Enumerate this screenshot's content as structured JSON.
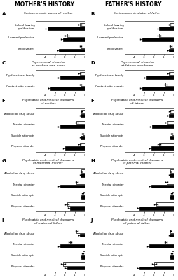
{
  "annotations": [
    "MOTHER'S HISTORY",
    "FATHER'S HISTORY"
  ],
  "chart_data": [
    {
      "type": "bar",
      "orientation": "horizontal",
      "title": "Socioeconomic status of mother",
      "annotations": [
        "A"
      ],
      "categories": [
        "School leaving\nqualification",
        "Learned profession",
        "Employment"
      ],
      "series": [
        {
          "color": "white",
          "values": [
            -0.5,
            -1.8,
            -0.4
          ],
          "errors": [
            0.15,
            0.15,
            0.1
          ]
        },
        {
          "color": "black",
          "values": [
            -3.8,
            -2.2,
            -2.6
          ],
          "errors": [
            0.2,
            0.2,
            0.2
          ]
        }
      ],
      "xlim": [
        -5,
        0
      ],
      "xticks": [
        -4,
        -3,
        -2,
        -1,
        0
      ]
    },
    {
      "type": "bar",
      "orientation": "horizontal",
      "title": "Socioeconomic status of father",
      "annotations": [
        "B"
      ],
      "categories": [
        "School leaving\nqualification",
        "Learned profession",
        "Employment"
      ],
      "series": [
        {
          "color": "white",
          "values": [
            -0.4,
            -1.5,
            -0.3
          ],
          "errors": [
            0.1,
            0.15,
            0.1
          ]
        },
        {
          "color": "black",
          "values": [
            -1.5,
            -3.2,
            -0.5
          ],
          "errors": [
            0.15,
            0.2,
            0.1
          ]
        }
      ],
      "xlim": [
        -5,
        0
      ],
      "xticks": [
        -4,
        -3,
        -2,
        -1,
        0
      ]
    },
    {
      "type": "bar",
      "orientation": "horizontal",
      "title": "Psychosocial situation\nat mothers own home",
      "annotations": [
        "C"
      ],
      "categories": [
        "Dysfunctional family",
        "Contact with parents"
      ],
      "series": [
        {
          "color": "white",
          "values": [
            -0.5,
            -0.4
          ],
          "errors": [
            0.1,
            0.1
          ]
        },
        {
          "color": "black",
          "values": [
            -2.5,
            -3.5
          ],
          "errors": [
            0.2,
            0.2
          ]
        }
      ],
      "xlim": [
        -5,
        0
      ],
      "xticks": [
        -4,
        -3,
        -2,
        -1,
        0
      ]
    },
    {
      "type": "bar",
      "orientation": "horizontal",
      "title": "Psychosocial situation\nat fathers own home",
      "annotations": [
        "D"
      ],
      "categories": [
        "Dysfunctional family",
        "Contact with parents"
      ],
      "series": [
        {
          "color": "white",
          "values": [
            -0.5,
            -0.8
          ],
          "errors": [
            0.1,
            0.1
          ]
        },
        {
          "color": "black",
          "values": [
            -2.8,
            -3.2
          ],
          "errors": [
            0.2,
            0.2
          ]
        }
      ],
      "xlim": [
        -5,
        0
      ],
      "xticks": [
        -4,
        -3,
        -2,
        -1,
        0
      ]
    },
    {
      "type": "bar",
      "orientation": "horizontal",
      "title": "Psychiatric and medical disorders\nof mother",
      "annotations": [
        "E"
      ],
      "categories": [
        "Alcohol or drug abuse",
        "Mental disorder",
        "Suicide attempts",
        "Physical disorder"
      ],
      "series": [
        {
          "color": "white",
          "values": [
            -0.3,
            -0.8,
            -0.2,
            -0.5
          ],
          "errors": [
            0.05,
            0.1,
            0.05,
            0.1
          ]
        },
        {
          "color": "black",
          "values": [
            -0.4,
            -2.5,
            -0.4,
            -2.0
          ],
          "errors": [
            0.1,
            0.2,
            0.1,
            0.2
          ]
        }
      ],
      "xlim": [
        -5,
        0
      ],
      "xticks": [
        -4,
        -3,
        -2,
        -1,
        0
      ]
    },
    {
      "type": "bar",
      "orientation": "horizontal",
      "title": "Psychiatric and medical disorders\nof father",
      "annotations": [
        "F"
      ],
      "categories": [
        "Alcohol or drug abuse",
        "Mental disorder",
        "Suicide attempts",
        "Physical disorder"
      ],
      "series": [
        {
          "color": "white",
          "values": [
            -0.4,
            -0.7,
            -0.2,
            -1.5
          ],
          "errors": [
            0.1,
            0.1,
            0.05,
            0.15
          ]
        },
        {
          "color": "black",
          "values": [
            -0.5,
            -2.2,
            -0.3,
            -2.3
          ],
          "errors": [
            0.1,
            0.2,
            0.05,
            0.2
          ]
        }
      ],
      "xlim": [
        -5,
        0
      ],
      "xticks": [
        -4,
        -3,
        -2,
        -1,
        0
      ]
    },
    {
      "type": "bar",
      "orientation": "horizontal",
      "title": "Psychiatric and medical disorders\nof maternal mother",
      "annotations": [
        "G"
      ],
      "categories": [
        "Alcohol or drug abuse",
        "Mental disorder",
        "Suicide attempts",
        "Physical disorder"
      ],
      "series": [
        {
          "color": "white",
          "values": [
            -0.3,
            -0.8,
            -0.2,
            -1.8
          ],
          "errors": [
            0.05,
            0.1,
            0.05,
            0.15
          ]
        },
        {
          "color": "black",
          "values": [
            -0.4,
            -2.5,
            -0.3,
            -1.5
          ],
          "errors": [
            0.1,
            0.2,
            0.05,
            0.2
          ]
        }
      ],
      "xlim": [
        -5,
        0
      ],
      "xticks": [
        -4,
        -3,
        -2,
        -1,
        0
      ]
    },
    {
      "type": "bar",
      "orientation": "horizontal",
      "title": "Psychiatric and medical disorders\nof paternal mother",
      "annotations": [
        "H"
      ],
      "categories": [
        "Alcohol or drug abuse",
        "Mental disorder",
        "Suicide attempts",
        "Physical disorder"
      ],
      "series": [
        {
          "color": "white",
          "values": [
            -0.3,
            -0.7,
            -0.2,
            -1.8
          ],
          "errors": [
            0.05,
            0.1,
            0.05,
            0.15
          ]
        },
        {
          "color": "black",
          "values": [
            -0.4,
            -2.3,
            -0.3,
            -3.5
          ],
          "errors": [
            0.1,
            0.2,
            0.05,
            0.2
          ]
        }
      ],
      "xlim": [
        -5,
        0
      ],
      "xticks": [
        -4,
        -3,
        -2,
        -1,
        0
      ]
    },
    {
      "type": "bar",
      "orientation": "horizontal",
      "title": "Psychiatric and medical disorders\nof maternal father",
      "annotations": [
        "I"
      ],
      "categories": [
        "Alcohol or drug abuse",
        "Mental disorder",
        "Suicide attempts",
        "Physical disorder"
      ],
      "series": [
        {
          "color": "white",
          "values": [
            -0.8,
            -1.5,
            -0.2,
            -2.2
          ],
          "errors": [
            0.1,
            0.15,
            0.05,
            0.2
          ]
        },
        {
          "color": "black",
          "values": [
            -0.5,
            -2.5,
            -0.3,
            -1.8
          ],
          "errors": [
            0.1,
            0.2,
            0.05,
            0.2
          ]
        }
      ],
      "xlim": [
        -5,
        0
      ],
      "xticks": [
        -4,
        -3,
        -2,
        -1,
        0
      ]
    },
    {
      "type": "bar",
      "orientation": "horizontal",
      "title": "Psychiatric and medical disorders\nof paternal father",
      "annotations": [
        "J"
      ],
      "categories": [
        "Alcohol or drug abuse",
        "Mental disorder",
        "Suicide attempts",
        "Physical disorder"
      ],
      "series": [
        {
          "color": "white",
          "values": [
            -0.3,
            -0.8,
            -0.2,
            -2.0
          ],
          "errors": [
            0.05,
            0.1,
            0.05,
            0.2
          ]
        },
        {
          "color": "black",
          "values": [
            -0.4,
            -2.5,
            -0.3,
            -3.5
          ],
          "errors": [
            0.1,
            0.2,
            0.05,
            0.2
          ]
        }
      ],
      "xlim": [
        -5,
        0
      ],
      "xticks": [
        -4,
        -3,
        -2,
        -1,
        0
      ]
    }
  ]
}
